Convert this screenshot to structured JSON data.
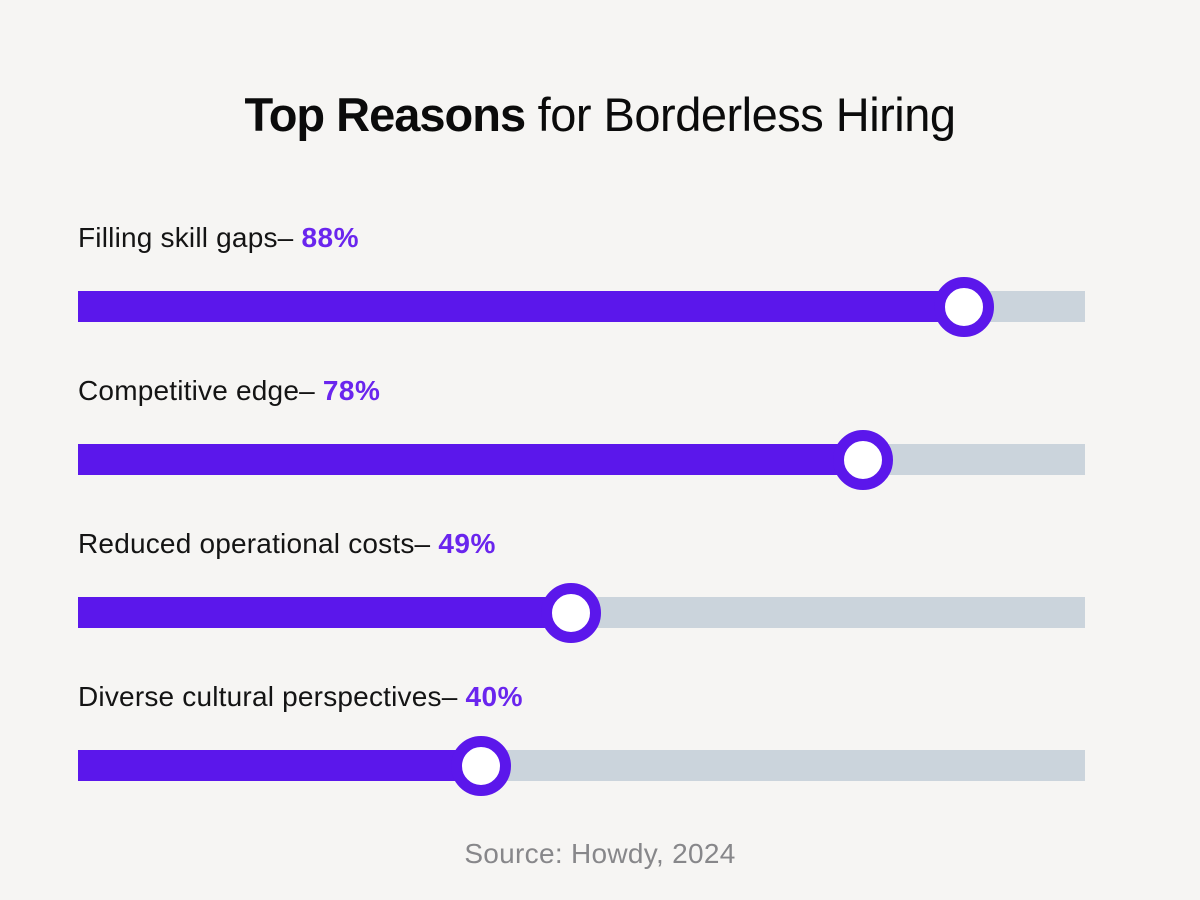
{
  "title": {
    "bold": "Top Reasons",
    "rest": " for Borderless Hiring"
  },
  "colors": {
    "accent": "#5B17EB",
    "accent_text": "#6A25EE",
    "track": "#CBD4DC",
    "background": "#F6F5F3",
    "label_text": "#141414",
    "source_text": "#87878A"
  },
  "rows": [
    {
      "label": "Filling skill gaps–",
      "value": "88%",
      "pct": 88
    },
    {
      "label": "Competitive edge–",
      "value": "78%",
      "pct": 78
    },
    {
      "label": "Reduced operational costs–",
      "value": "49%",
      "pct": 49
    },
    {
      "label": "Diverse cultural perspectives–",
      "value": "40%",
      "pct": 40
    }
  ],
  "source": "Source: Howdy, 2024",
  "chart_data": {
    "type": "bar",
    "orientation": "horizontal",
    "style": "slider-progress",
    "title": "Top Reasons for Borderless Hiring",
    "categories": [
      "Filling skill gaps",
      "Competitive edge",
      "Reduced operational costs",
      "Diverse cultural perspectives"
    ],
    "values": [
      88,
      78,
      49,
      40
    ],
    "value_suffix": "%",
    "xlim": [
      0,
      100
    ],
    "grid": false,
    "legend": false,
    "source": "Source: Howdy, 2024"
  }
}
